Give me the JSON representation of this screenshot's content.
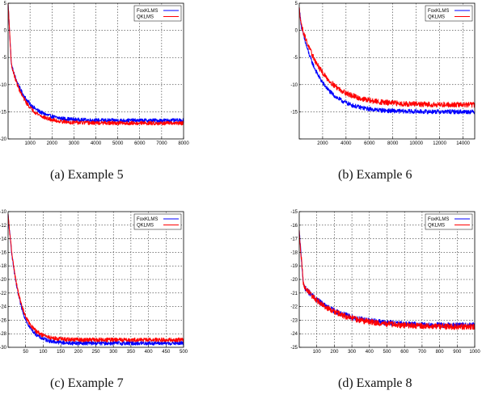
{
  "chart_data": [
    {
      "type": "line",
      "caption": "(a) Example 5",
      "xlim": [
        0,
        8000
      ],
      "ylim": [
        -20,
        5
      ],
      "xticks": [
        1000,
        2000,
        3000,
        4000,
        5000,
        6000,
        7000,
        8000
      ],
      "yticks": [
        -20,
        -15,
        -10,
        -5,
        0,
        5
      ],
      "ytick_labels": [
        "-20",
        "-15",
        "-10",
        "-5",
        "0",
        "5"
      ],
      "grid": true,
      "legend_position": "top-right",
      "series": [
        {
          "name": "FoxKLMS",
          "color": "#0000ff",
          "start": 5,
          "drop_to": -6.3,
          "drop_end": 150,
          "final": -16.6,
          "tau": 700,
          "noise": 0.35
        },
        {
          "name": "QKLMS",
          "color": "#ff0000",
          "start": 5,
          "drop_to": -6.3,
          "drop_end": 150,
          "final": -17.1,
          "tau": 650,
          "noise": 0.35
        }
      ]
    },
    {
      "type": "line",
      "caption": "(b) Example 6",
      "xlim": [
        0,
        15000
      ],
      "ylim": [
        -20,
        5
      ],
      "xticks": [
        2000,
        4000,
        6000,
        8000,
        10000,
        12000,
        14000
      ],
      "yticks": [
        -20,
        -15,
        -10,
        -5,
        0,
        5
      ],
      "ytick_labels": [
        "",
        "-15",
        "-10",
        "-5",
        "0",
        "5"
      ],
      "grid": true,
      "legend_position": "top-right",
      "series": [
        {
          "name": "FoxKLMS",
          "color": "#0000ff",
          "start": 4,
          "drop_to": 0.5,
          "drop_end": 200,
          "final": -15.0,
          "tau": 1700,
          "noise": 0.4
        },
        {
          "name": "QKLMS",
          "color": "#ff0000",
          "start": 4,
          "drop_to": 0.8,
          "drop_end": 200,
          "final": -13.7,
          "tau": 2000,
          "noise": 0.5
        }
      ]
    },
    {
      "type": "line",
      "caption": "(c) Example 7",
      "xlim": [
        0,
        500
      ],
      "ylim": [
        -30,
        -10
      ],
      "xticks": [
        50,
        100,
        150,
        200,
        250,
        300,
        350,
        400,
        450,
        500
      ],
      "yticks": [
        -30,
        -28,
        -26,
        -24,
        -22,
        -20,
        -18,
        -16,
        -14,
        -12,
        -10
      ],
      "ytick_labels": [
        "-30",
        "-28",
        "-26",
        "-24",
        "-22",
        "-20",
        "-18",
        "-16",
        "-14",
        "-12",
        "-10"
      ],
      "grid": true,
      "legend_position": "top-right",
      "series": [
        {
          "name": "FoxKLMS",
          "color": "#0000ff",
          "start": -10.5,
          "drop_to": -10.5,
          "drop_end": 0,
          "final": -29.4,
          "tau": 30,
          "noise": 0.3
        },
        {
          "name": "QKLMS",
          "color": "#ff0000",
          "start": -10.5,
          "drop_to": -10.5,
          "drop_end": 0,
          "final": -28.9,
          "tau": 30,
          "noise": 0.3
        }
      ]
    },
    {
      "type": "line",
      "caption": "(d) Example 8",
      "xlim": [
        0,
        1000
      ],
      "ylim": [
        -25,
        -15
      ],
      "xticks": [
        100,
        200,
        300,
        400,
        500,
        600,
        700,
        800,
        900,
        1000
      ],
      "yticks": [
        -25,
        -24,
        -23,
        -22,
        -21,
        -20,
        -19,
        -18,
        -17,
        -16,
        -15
      ],
      "ytick_labels": [
        "-25",
        "-24",
        "-23",
        "-22",
        "-21",
        "-20",
        "-19",
        "-18",
        "-17",
        "-16",
        "-15"
      ],
      "grid": true,
      "legend_position": "top-right",
      "series": [
        {
          "name": "FoxKLMS",
          "color": "#0000ff",
          "start": -16.5,
          "drop_to": -20.5,
          "drop_end": 25,
          "final": -23.4,
          "tau": 180,
          "noise": 0.2
        },
        {
          "name": "QKLMS",
          "color": "#ff0000",
          "start": -16.5,
          "drop_to": -20.5,
          "drop_end": 25,
          "final": -23.5,
          "tau": 180,
          "noise": 0.22
        }
      ]
    }
  ]
}
